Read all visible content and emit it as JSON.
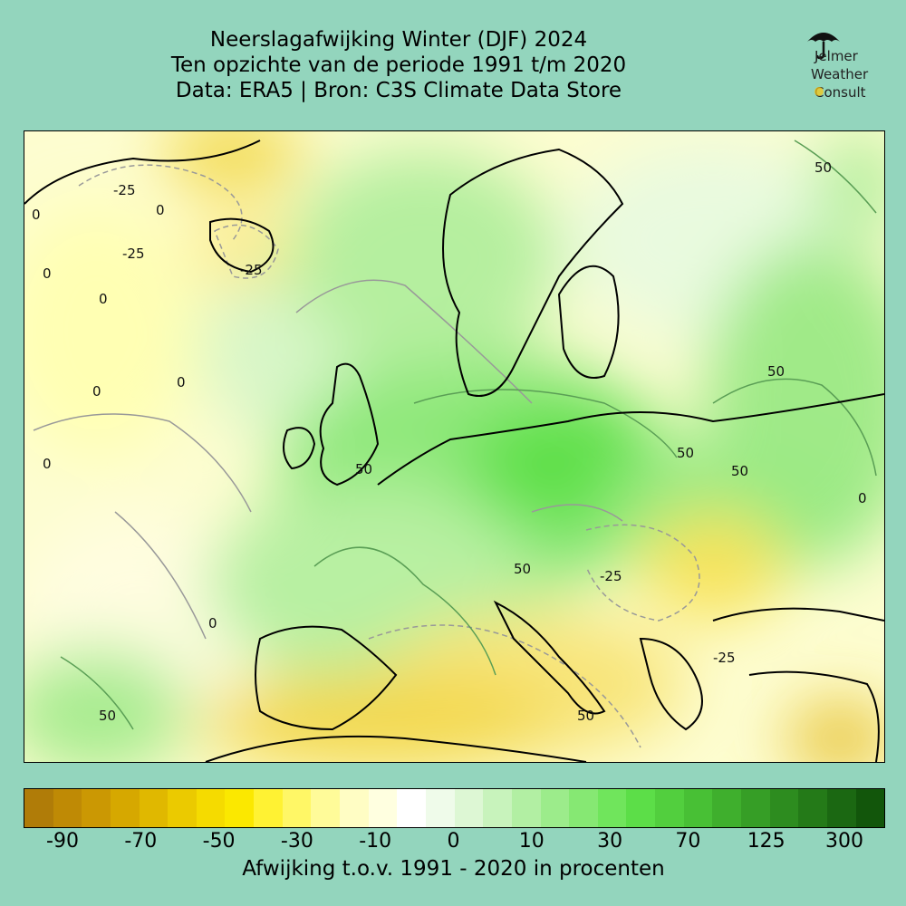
{
  "title": {
    "line1": "Neerslagafwijking Winter (DJF) 2024",
    "line2": "Ten opzichte van de periode 1991 t/m 2020",
    "line3": "Data: ERA5 | Bron: C3S Climate Data Store"
  },
  "logo": {
    "line1": "Jelmer",
    "line2": "Weather",
    "line3": "Consult",
    "icon": "umbrella-icon",
    "accent": "#f5c518"
  },
  "map": {
    "contour_labels": [
      "50",
      "50",
      "50",
      "50",
      "50",
      "50",
      "50",
      "50",
      "-25",
      "-25",
      "-25",
      "-25",
      "-25",
      "0",
      "0",
      "0",
      "0",
      "0",
      "0",
      "0",
      "0",
      "0"
    ]
  },
  "colorbar": {
    "colors": [
      "#b07c08",
      "#bf8a05",
      "#cb9803",
      "#d6a800",
      "#e0b800",
      "#ebca00",
      "#f5db00",
      "#fbe800",
      "#fff233",
      "#fff766",
      "#fffb99",
      "#fffdc4",
      "#ffffe0",
      "#ffffff",
      "#effbea",
      "#ddf7d4",
      "#c8f3bc",
      "#b2efa3",
      "#9cec8b",
      "#86e873",
      "#70e55c",
      "#5cde48",
      "#52cf3e",
      "#48c035",
      "#3faf2d",
      "#369e26",
      "#2d8c1f",
      "#247a18",
      "#1b6812",
      "#12560b"
    ],
    "tick_labels": [
      "-90",
      "-70",
      "-50",
      "-30",
      "-10",
      "0",
      "10",
      "30",
      "70",
      "125",
      "300"
    ],
    "label": "Afwijking t.o.v. 1991 - 2020 in procenten"
  }
}
